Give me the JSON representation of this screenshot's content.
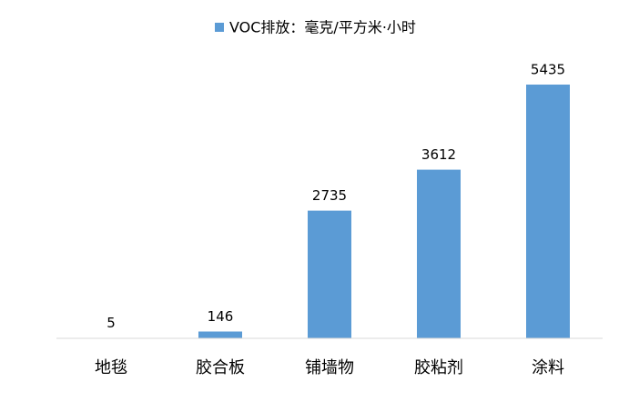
{
  "chart_data": {
    "type": "bar",
    "series": [
      {
        "name": "VOC排放：毫克/平方米·小时",
        "color": "#5b9bd5",
        "values": [
          5,
          146,
          2735,
          3612,
          5435
        ]
      }
    ],
    "categories": [
      "地毯",
      "胶合板",
      "铺墙物",
      "胶粘剂",
      "涂料"
    ],
    "ylim": [
      0,
      6000
    ]
  }
}
